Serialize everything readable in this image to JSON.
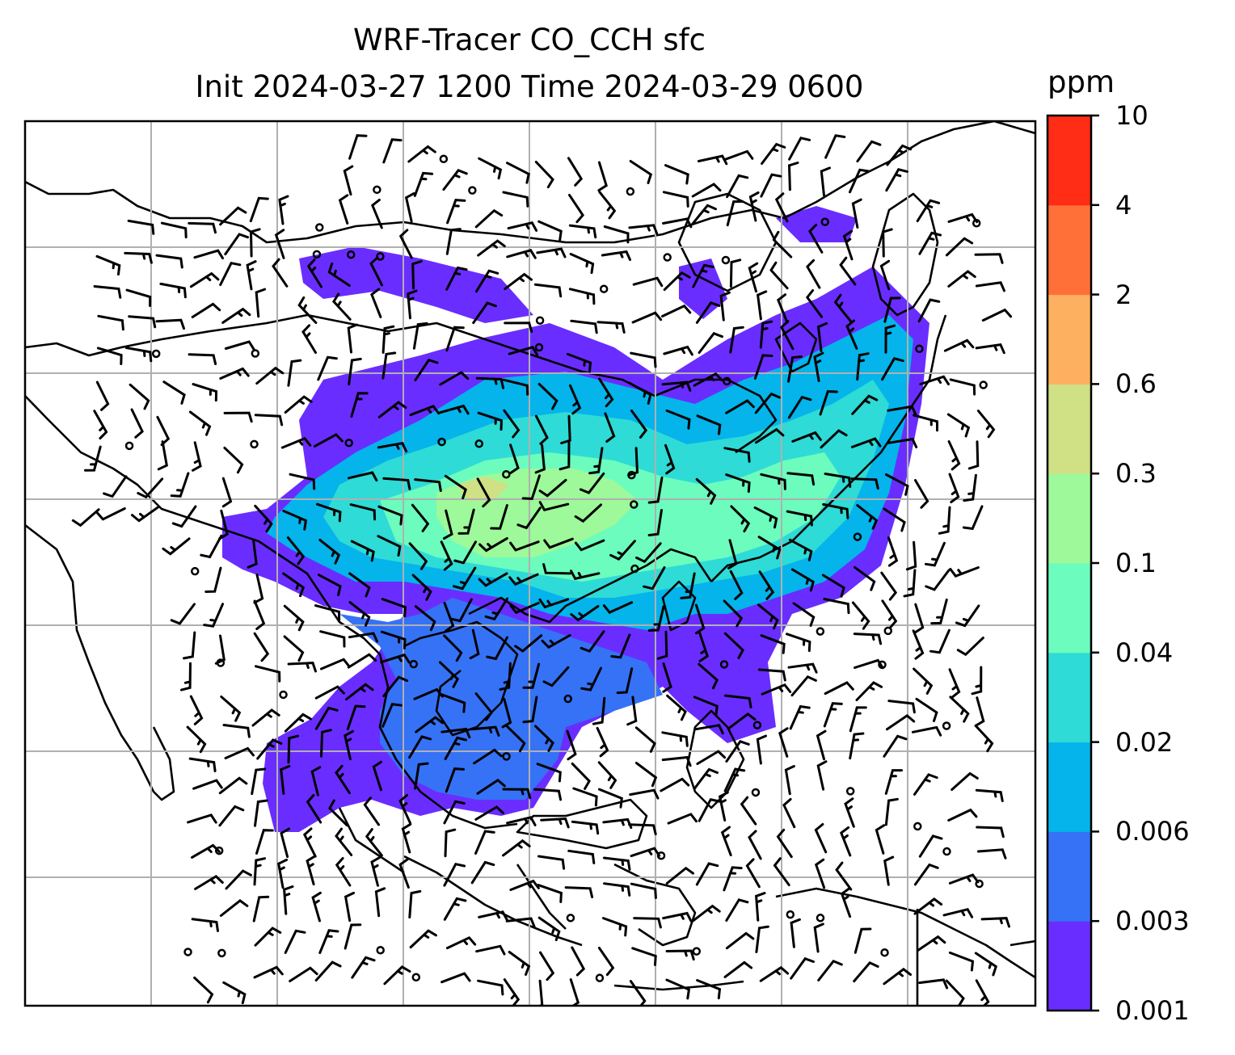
{
  "title": {
    "line1": "WRF-Tracer CO_CCH sfc",
    "line2": "Init 2024-03-27 1200 Time 2024-03-29 0600"
  },
  "colorbar": {
    "unit": "ppm",
    "levels": [
      "0.001",
      "0.003",
      "0.006",
      "0.02",
      "0.04",
      "0.1",
      "0.3",
      "0.6",
      "2",
      "4",
      "10"
    ],
    "colors": [
      "#6a2dff",
      "#3572f6",
      "#04b4ea",
      "#2edbd6",
      "#6cfcbe",
      "#9df999",
      "#cfe085",
      "#fdb05f",
      "#ff7038",
      "#ff2c16"
    ]
  },
  "map": {
    "field": "CO_CCH",
    "level": "sfc",
    "gridlines": true,
    "barbs": true
  }
}
